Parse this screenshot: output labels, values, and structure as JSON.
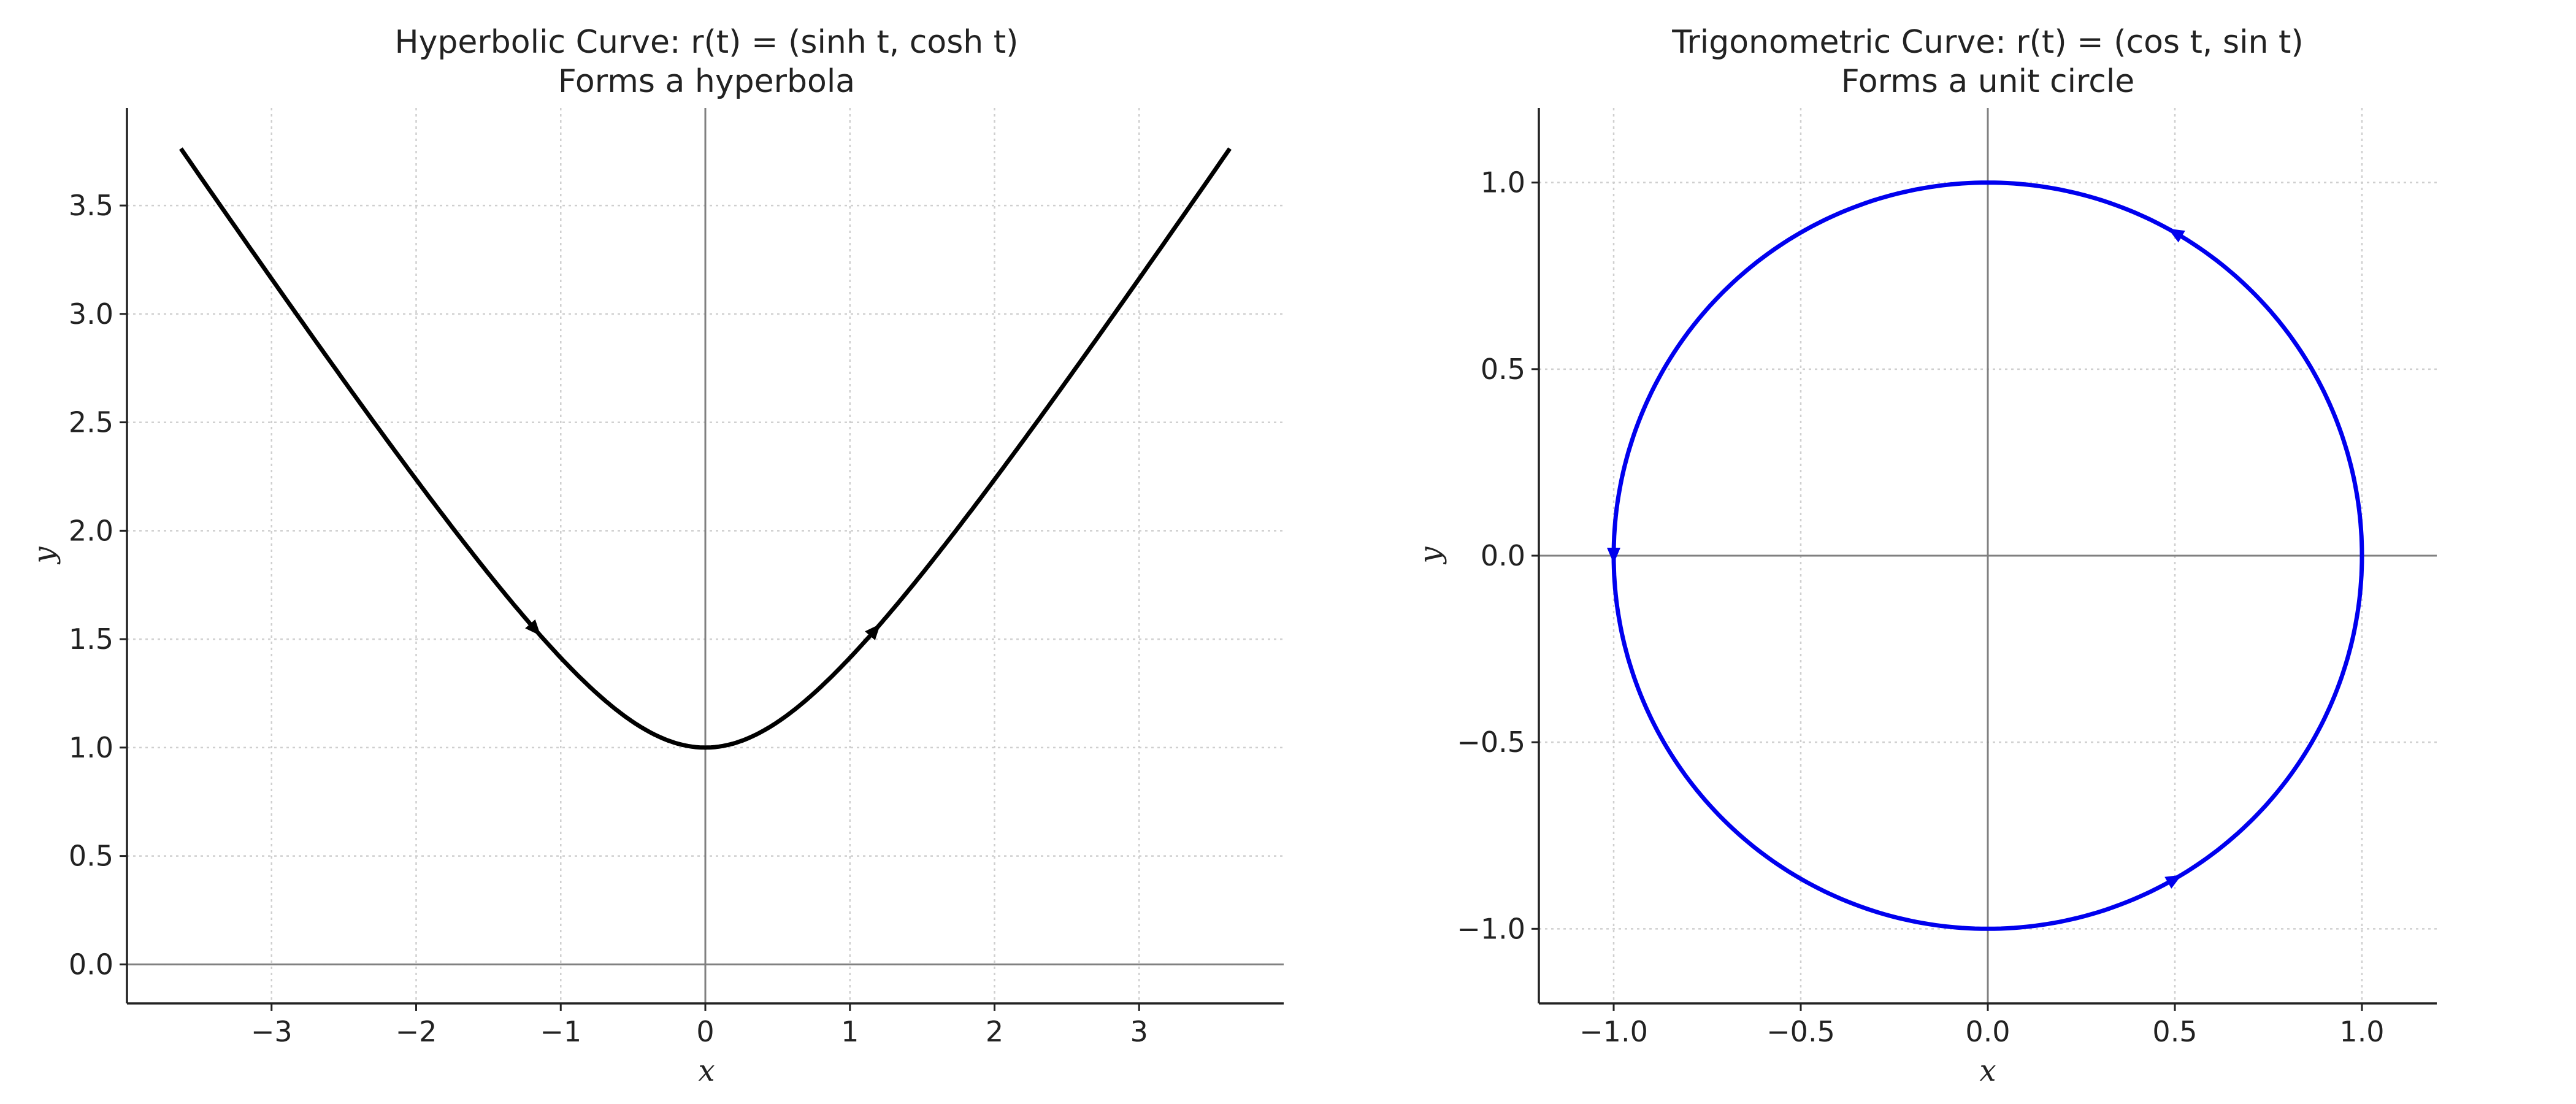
{
  "chart_data": [
    {
      "type": "line",
      "title": "Hyperbolic Curve: r(t) = (sinh t, cosh t)",
      "subtitle": "Forms a hyperbola",
      "xlabel": "x",
      "ylabel": "y",
      "xlim": [
        -4.0,
        4.0
      ],
      "ylim": [
        -0.18,
        3.95
      ],
      "xticks": [
        -3,
        -2,
        -1,
        0,
        1,
        2,
        3
      ],
      "xtick_labels": [
        "−3",
        "−2",
        "−1",
        "0",
        "1",
        "2",
        "3"
      ],
      "yticks": [
        0.0,
        0.5,
        1.0,
        1.5,
        2.0,
        2.5,
        3.0,
        3.5
      ],
      "ytick_labels": [
        "0.0",
        "0.5",
        "1.0",
        "1.5",
        "2.0",
        "2.5",
        "3.0",
        "3.5"
      ],
      "grid": true,
      "series": [
        {
          "color": "#000000",
          "x": [
            -3.627,
            -3.0,
            -2.5,
            -2.0,
            -1.5,
            -1.0,
            -0.5,
            0.0,
            0.5,
            1.0,
            1.5,
            2.0,
            2.5,
            3.0,
            3.627
          ],
          "y": [
            3.762,
            3.162,
            2.693,
            2.236,
            1.803,
            1.414,
            1.118,
            1.0,
            1.118,
            1.414,
            1.803,
            2.236,
            2.693,
            3.162,
            3.762
          ]
        }
      ],
      "direction_arrows": [
        {
          "x": -1.175,
          "y": 1.543,
          "dx": 0.66,
          "dy": -0.75
        },
        {
          "x": 1.175,
          "y": 1.543,
          "dx": 0.66,
          "dy": 0.75
        }
      ]
    },
    {
      "type": "line",
      "title": "Trigonometric Curve: r(t) = (cos t, sin t)",
      "subtitle": "Forms a unit circle",
      "xlabel": "x",
      "ylabel": "y",
      "xlim": [
        -1.2,
        1.2
      ],
      "ylim": [
        -1.2,
        1.2
      ],
      "xticks": [
        -1.0,
        -0.5,
        0.0,
        0.5,
        1.0
      ],
      "xtick_labels": [
        "−1.0",
        "−0.5",
        "0.0",
        "0.5",
        "1.0"
      ],
      "yticks": [
        -1.0,
        -0.5,
        0.0,
        0.5,
        1.0
      ],
      "ytick_labels": [
        "−1.0",
        "−0.5",
        "0.0",
        "0.5",
        "1.0"
      ],
      "grid": true,
      "series": [
        {
          "color": "#0000ee",
          "x": [
            1.0,
            0.866,
            0.5,
            0.0,
            -0.5,
            -0.866,
            -1.0,
            -0.866,
            -0.5,
            0.0,
            0.5,
            0.866,
            1.0
          ],
          "y": [
            0.0,
            0.5,
            0.866,
            1.0,
            0.866,
            0.5,
            0.0,
            -0.5,
            -0.866,
            -1.0,
            -0.866,
            -0.5,
            0.0
          ]
        }
      ],
      "direction_arrows": [
        {
          "x": 0.5,
          "y": 0.866,
          "dx": -0.866,
          "dy": 0.5
        },
        {
          "x": -1.0,
          "y": 0.0,
          "dx": 0.0,
          "dy": -1.0
        },
        {
          "x": 0.5,
          "y": -0.866,
          "dx": 0.866,
          "dy": 0.5
        }
      ]
    }
  ]
}
